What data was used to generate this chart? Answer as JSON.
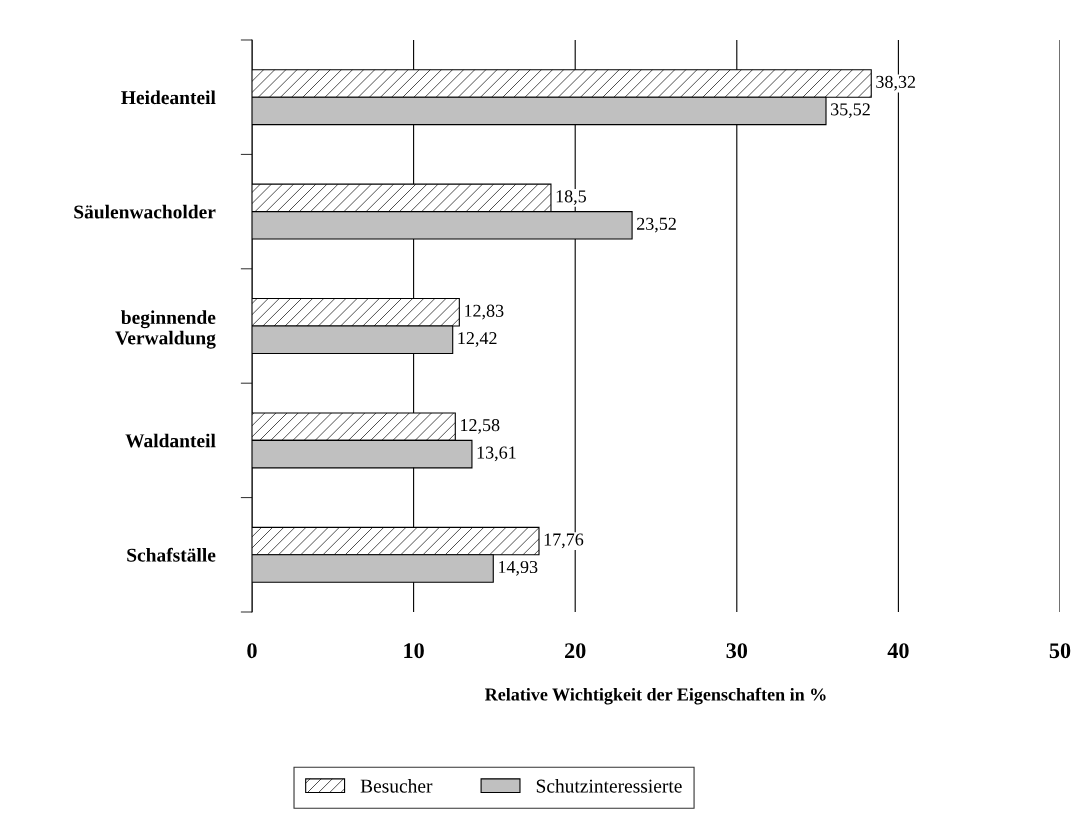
{
  "chart_data": {
    "type": "bar",
    "orientation": "horizontal",
    "categories": [
      "Heideanteil",
      "Säulenwacholder",
      "beginnende\nVerwaldung",
      "Waldanteil",
      "Schafställe"
    ],
    "series": [
      {
        "name": "Besucher",
        "color": "#000000",
        "values": [
          38.32,
          18.5,
          12.83,
          12.58,
          17.76
        ],
        "value_labels": [
          "38,32",
          "18,5",
          "12,83",
          "12,58",
          "17,76"
        ]
      },
      {
        "name": "Schutzinteressierte",
        "color": "#c0c0c0",
        "values": [
          35.52,
          23.52,
          12.42,
          13.61,
          14.93
        ],
        "value_labels": [
          "35,52",
          "23,52",
          "12,42",
          "13,61",
          "14,93"
        ]
      }
    ],
    "xlabel": "Relative Wichtigkeit der Eigenschaften in %",
    "xlim": [
      0,
      50
    ],
    "xticks": [
      0,
      10,
      20,
      30,
      40,
      50
    ],
    "grid": "x",
    "legend": "bottom"
  }
}
